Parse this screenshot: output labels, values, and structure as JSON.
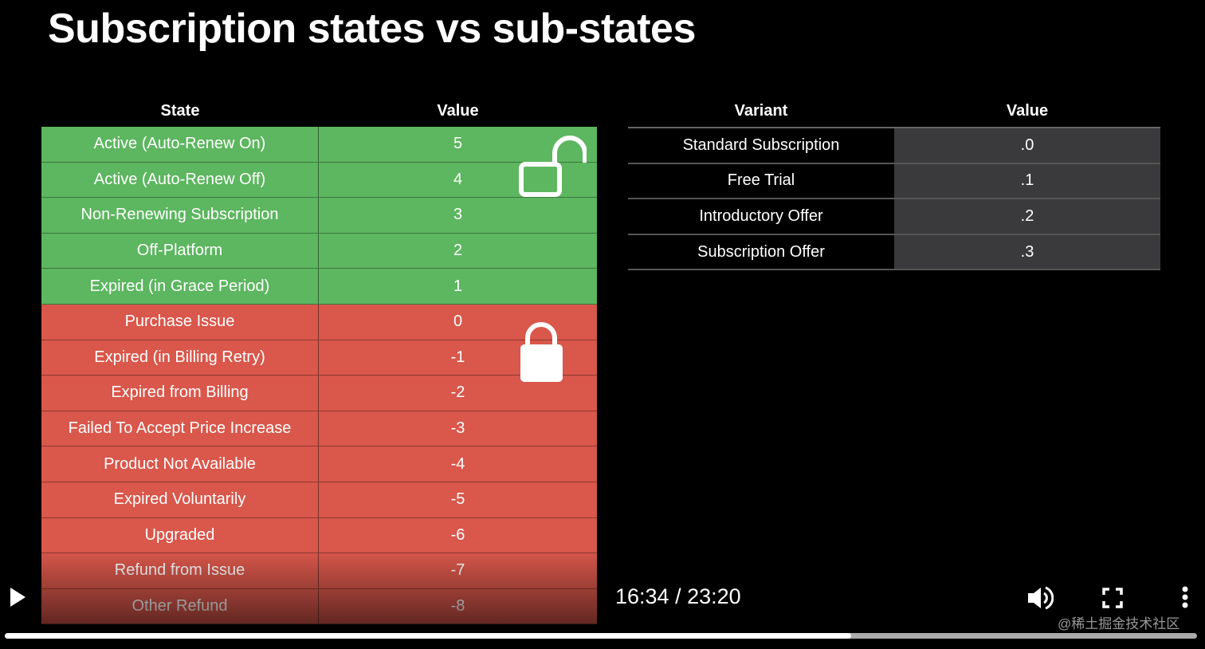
{
  "slide_title": "Subscription states vs sub-states",
  "left_table": {
    "headers": [
      "State",
      "Value"
    ],
    "rows": [
      {
        "state": "Active (Auto-Renew On)",
        "value": "5",
        "color": "green"
      },
      {
        "state": "Active (Auto-Renew Off)",
        "value": "4",
        "color": "green"
      },
      {
        "state": "Non-Renewing Subscription",
        "value": "3",
        "color": "green"
      },
      {
        "state": "Off-Platform",
        "value": "2",
        "color": "green"
      },
      {
        "state": "Expired (in Grace Period)",
        "value": "1",
        "color": "green"
      },
      {
        "state": "Purchase Issue",
        "value": "0",
        "color": "red"
      },
      {
        "state": "Expired (in Billing Retry)",
        "value": "-1",
        "color": "red"
      },
      {
        "state": "Expired from Billing",
        "value": "-2",
        "color": "red"
      },
      {
        "state": "Failed To Accept Price Increase",
        "value": "-3",
        "color": "red"
      },
      {
        "state": "Product Not Available",
        "value": "-4",
        "color": "red"
      },
      {
        "state": "Expired Voluntarily",
        "value": "-5",
        "color": "red"
      },
      {
        "state": "Upgraded",
        "value": "-6",
        "color": "red"
      },
      {
        "state": "Refund from Issue",
        "value": "-7",
        "color": "red"
      },
      {
        "state": "Other Refund",
        "value": "-8",
        "color": "red"
      }
    ]
  },
  "right_table": {
    "headers": [
      "Variant",
      "Value"
    ],
    "rows": [
      {
        "variant": "Standard Subscription",
        "value": ".0"
      },
      {
        "variant": "Free Trial",
        "value": ".1"
      },
      {
        "variant": "Introductory Offer",
        "value": ".2"
      },
      {
        "variant": "Subscription Offer",
        "value": ".3"
      }
    ]
  },
  "player": {
    "current_time": "16:34",
    "separator": "/",
    "duration": "23:20",
    "progress": 0.71
  },
  "watermark": "@稀土掘金技术社区",
  "colors": {
    "green": "#5db660",
    "red": "#d9574b"
  }
}
